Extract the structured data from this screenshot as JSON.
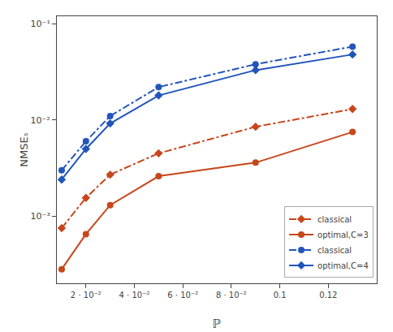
{
  "chart_data": {
    "type": "line",
    "x": [
      0.01,
      0.02,
      0.03,
      0.05,
      0.09,
      0.13
    ],
    "series": [
      {
        "name": "classical",
        "color": "#c8461b",
        "marker": "diamond",
        "line_style": "dashdot",
        "values": [
          0.00075,
          0.00155,
          0.0027,
          0.0045,
          0.0085,
          0.013
        ]
      },
      {
        "name": "optimal,C=3",
        "color": "#c8461b",
        "marker": "circle",
        "line_style": "solid",
        "values": [
          0.00028,
          0.00065,
          0.0013,
          0.0026,
          0.0036,
          0.0075
        ]
      },
      {
        "name": "classical ",
        "color": "#2255bb",
        "marker": "circle",
        "line_style": "dashdot",
        "values": [
          0.003,
          0.006,
          0.011,
          0.022,
          0.038,
          0.058
        ]
      },
      {
        "name": "optimal,C=4",
        "color": "#2255bb",
        "marker": "diamond",
        "line_style": "solid",
        "values": [
          0.0024,
          0.005,
          0.0092,
          0.018,
          0.033,
          0.048
        ]
      }
    ],
    "xlabel": "ℙ",
    "ylabel": "NMSEₛ",
    "xlim": [
      0.008,
      0.14
    ],
    "ylim": [
      0.0002,
      0.12
    ],
    "xticks": [
      {
        "value": 0.02,
        "label": "2 · 10⁻²"
      },
      {
        "value": 0.04,
        "label": "4 · 10⁻²"
      },
      {
        "value": 0.06,
        "label": "6 · 10⁻²"
      },
      {
        "value": 0.08,
        "label": "8 · 10⁻²"
      },
      0.1,
      0.12
    ],
    "yticks": [
      {
        "value": 0.001,
        "label": "10⁻³"
      },
      {
        "value": 0.01,
        "label": "10⁻²"
      },
      {
        "value": 0.1,
        "label": "10⁻¹"
      }
    ],
    "log": "y",
    "grid": false,
    "legend": "lower right"
  }
}
